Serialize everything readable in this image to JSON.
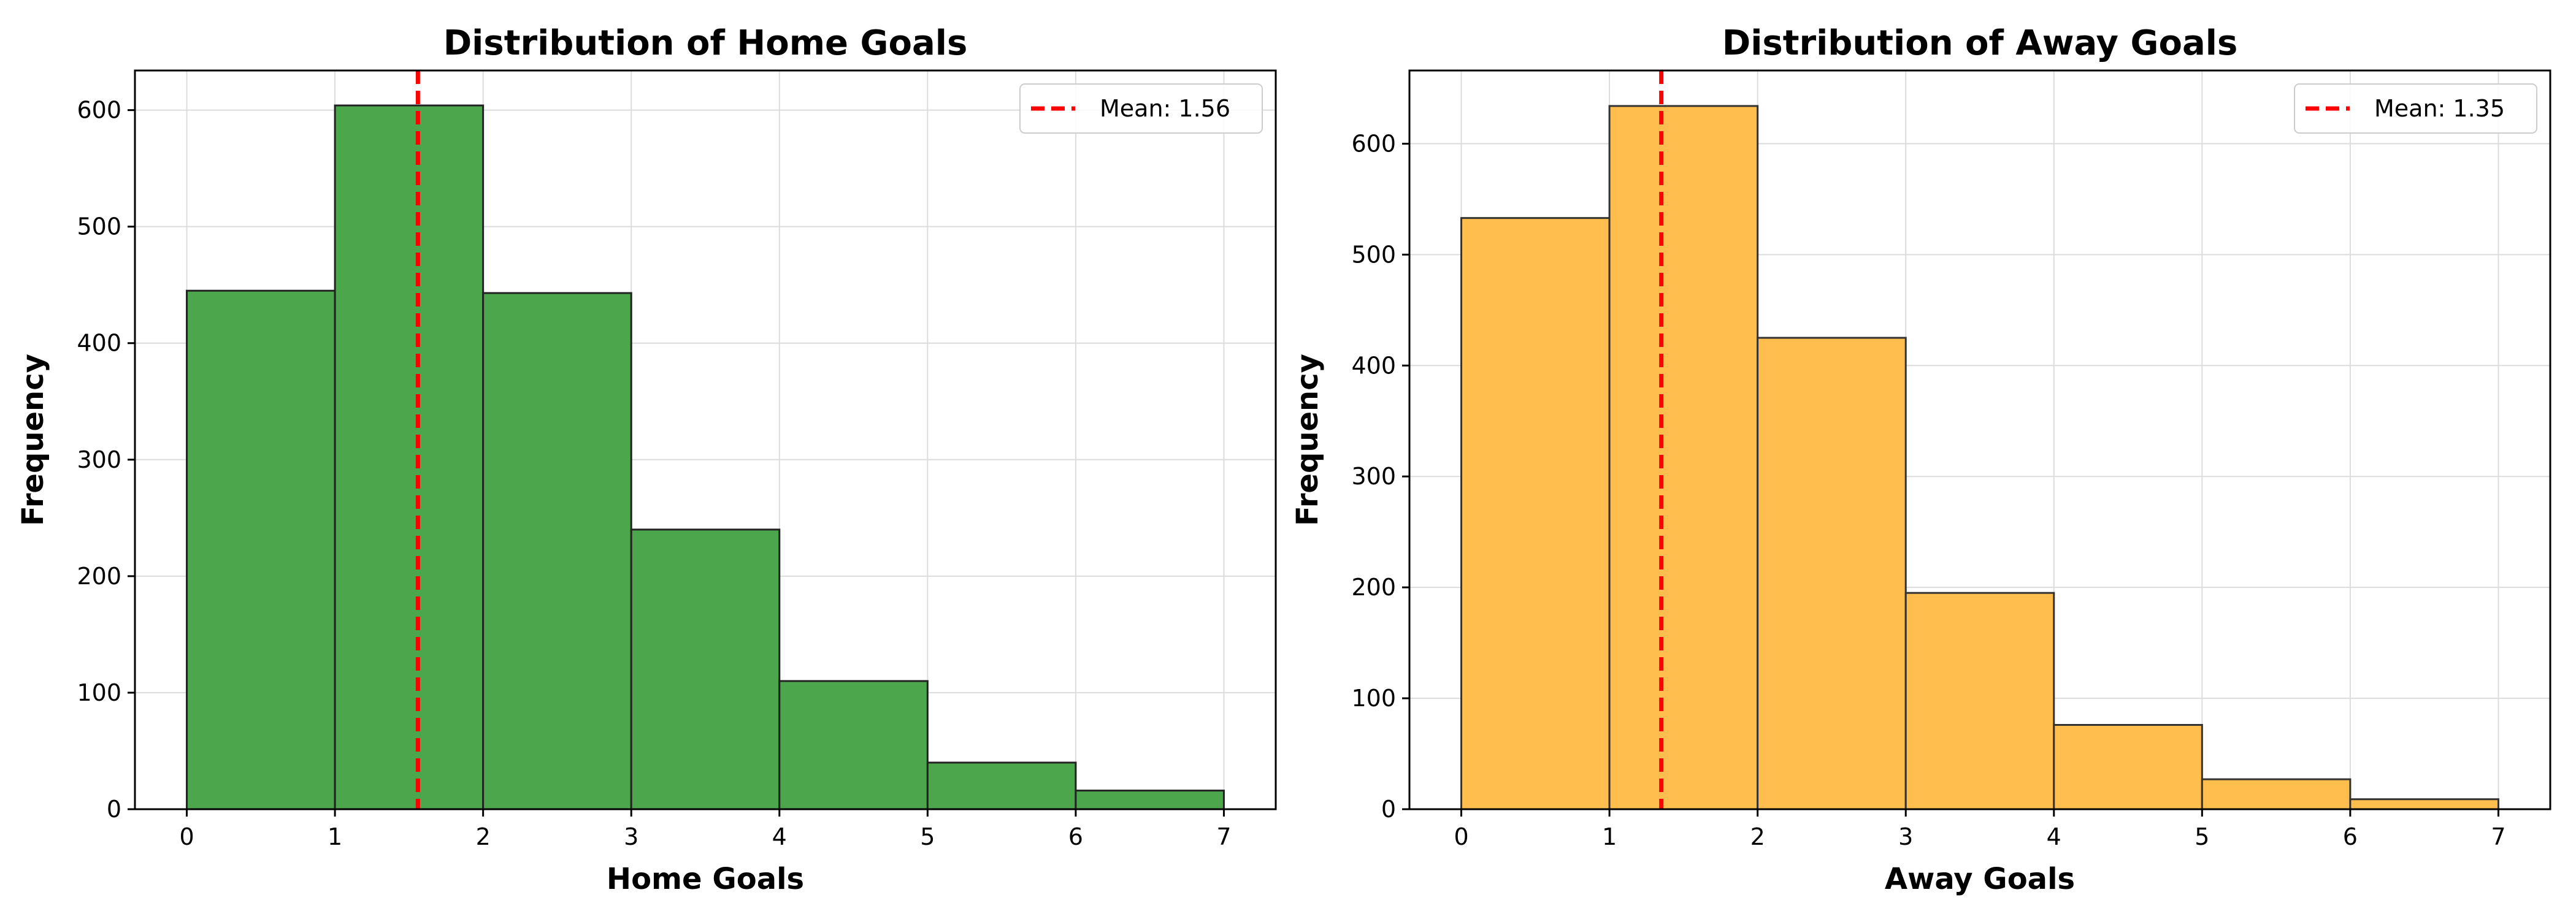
{
  "chart_data": [
    {
      "type": "bar",
      "title": "Distribution of Home Goals",
      "xlabel": "Home Goals",
      "ylabel": "Frequency",
      "bin_edges": [
        0,
        1,
        2,
        3,
        4,
        5,
        6,
        7
      ],
      "values": [
        445,
        604,
        443,
        240,
        110,
        40,
        16
      ],
      "xticks": [
        0,
        1,
        2,
        3,
        4,
        5,
        6,
        7
      ],
      "yticks": [
        0,
        100,
        200,
        300,
        400,
        500,
        600
      ],
      "xlim": [
        -0.35,
        7.35
      ],
      "ylim": [
        0,
        634
      ],
      "bar_color": "#4ca64c",
      "edge_color": "#222222",
      "mean": 1.56,
      "mean_color": "#ff0000",
      "legend": {
        "label": "Mean: 1.56",
        "placement": "top-right"
      },
      "grid": true
    },
    {
      "type": "bar",
      "title": "Distribution of Away Goals",
      "xlabel": "Away Goals",
      "ylabel": "Frequency",
      "bin_edges": [
        0,
        1,
        2,
        3,
        4,
        5,
        6,
        7
      ],
      "values": [
        533,
        634,
        425,
        195,
        76,
        27,
        9
      ],
      "xticks": [
        0,
        1,
        2,
        3,
        4,
        5,
        6,
        7
      ],
      "yticks": [
        0,
        100,
        200,
        300,
        400,
        500,
        600
      ],
      "xlim": [
        -0.35,
        7.35
      ],
      "ylim": [
        0,
        666
      ],
      "bar_color": "#ffbe4d",
      "edge_color": "#333333",
      "mean": 1.35,
      "mean_color": "#ff0000",
      "legend": {
        "label": "Mean: 1.35",
        "placement": "top-right"
      },
      "grid": true
    }
  ]
}
